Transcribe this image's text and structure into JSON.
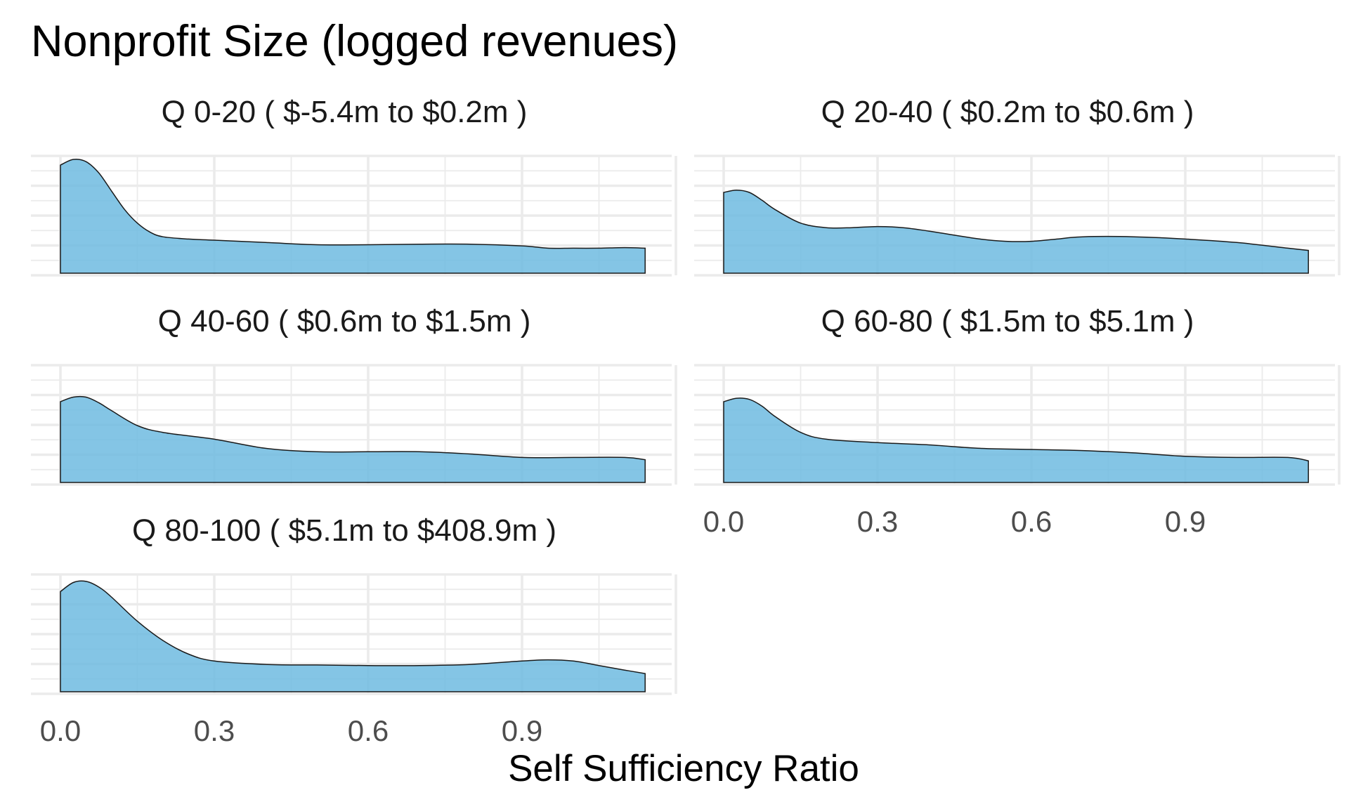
{
  "chart_data": {
    "type": "area",
    "kind": "density-facets",
    "title": "Nonprofit Size (logged revenues)",
    "xlabel": "Self Sufficiency Ratio",
    "ylabel": "",
    "x_ticks": [
      "0.0",
      "0.3",
      "0.6",
      "0.9"
    ],
    "xlim": [
      0.0,
      1.2
    ],
    "fill_color": "#6fbbe0",
    "line_color": "#1a1a1a",
    "grid": true,
    "facets": [
      {
        "label": "Q 0-20   ( $-5.4m to $0.2m )",
        "x": [
          0.0,
          0.025,
          0.05,
          0.075,
          0.1,
          0.125,
          0.15,
          0.175,
          0.2,
          0.25,
          0.3,
          0.4,
          0.5,
          0.6,
          0.7,
          0.8,
          0.9,
          0.95,
          1.0,
          1.05,
          1.1,
          1.14
        ],
        "y": [
          0.95,
          1.0,
          0.98,
          0.88,
          0.72,
          0.56,
          0.44,
          0.36,
          0.32,
          0.3,
          0.29,
          0.27,
          0.25,
          0.25,
          0.255,
          0.255,
          0.24,
          0.22,
          0.22,
          0.22,
          0.225,
          0.22
        ]
      },
      {
        "label": "Q 20-40   ( $0.2m to $0.6m )",
        "x": [
          0.0,
          0.025,
          0.05,
          0.075,
          0.1,
          0.15,
          0.2,
          0.25,
          0.3,
          0.35,
          0.4,
          0.5,
          0.55,
          0.6,
          0.65,
          0.7,
          0.8,
          0.9,
          1.0,
          1.1,
          1.14
        ],
        "y": [
          0.71,
          0.73,
          0.71,
          0.64,
          0.56,
          0.44,
          0.4,
          0.4,
          0.41,
          0.4,
          0.37,
          0.3,
          0.28,
          0.28,
          0.3,
          0.32,
          0.32,
          0.3,
          0.27,
          0.22,
          0.2
        ]
      },
      {
        "label": "Q 40-60   ( $0.6m to $1.5m )",
        "x": [
          0.0,
          0.025,
          0.05,
          0.075,
          0.1,
          0.15,
          0.2,
          0.3,
          0.4,
          0.5,
          0.6,
          0.7,
          0.8,
          0.9,
          1.0,
          1.1,
          1.14
        ],
        "y": [
          0.71,
          0.75,
          0.75,
          0.7,
          0.63,
          0.5,
          0.44,
          0.38,
          0.3,
          0.27,
          0.27,
          0.27,
          0.25,
          0.22,
          0.22,
          0.22,
          0.2
        ]
      },
      {
        "label": "Q 60-80   ( $1.5m to $5.1m )",
        "x": [
          0.0,
          0.025,
          0.05,
          0.075,
          0.1,
          0.15,
          0.2,
          0.3,
          0.4,
          0.5,
          0.6,
          0.7,
          0.8,
          0.9,
          1.0,
          1.1,
          1.14
        ],
        "y": [
          0.71,
          0.74,
          0.73,
          0.67,
          0.58,
          0.44,
          0.38,
          0.35,
          0.33,
          0.3,
          0.29,
          0.28,
          0.26,
          0.23,
          0.22,
          0.22,
          0.19
        ]
      },
      {
        "label": "Q 80-100   ( $5.1m to $408.9m )",
        "x": [
          0.0,
          0.025,
          0.05,
          0.075,
          0.1,
          0.15,
          0.2,
          0.25,
          0.3,
          0.4,
          0.5,
          0.6,
          0.7,
          0.8,
          0.9,
          0.95,
          1.0,
          1.05,
          1.1,
          1.14
        ],
        "y": [
          0.88,
          0.96,
          0.97,
          0.92,
          0.83,
          0.62,
          0.45,
          0.33,
          0.27,
          0.24,
          0.235,
          0.23,
          0.23,
          0.24,
          0.27,
          0.28,
          0.27,
          0.23,
          0.19,
          0.16
        ]
      }
    ]
  }
}
